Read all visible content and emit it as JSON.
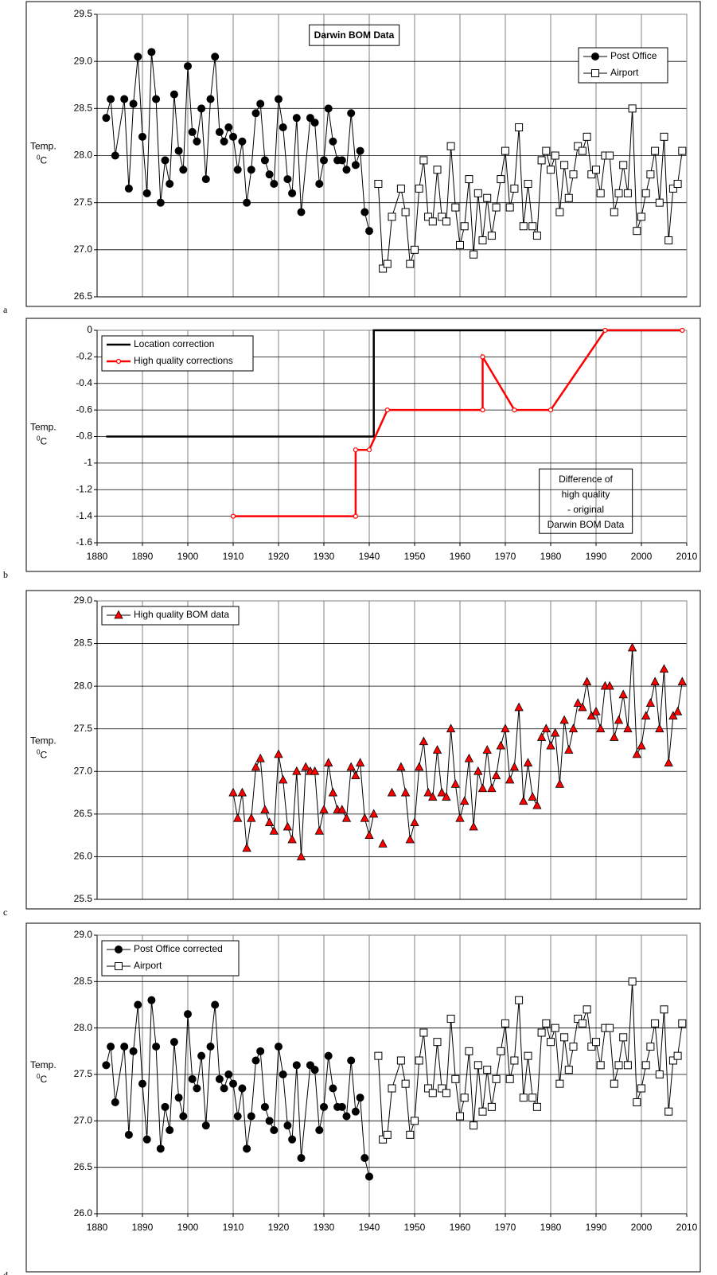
{
  "chart_data": [
    {
      "type": "line",
      "title": "Darwin BOM Data",
      "panel_label": "a",
      "ylabel": "Temp.",
      "yunit_sup": "0",
      "yunit": "C",
      "xlim": [
        1880,
        2010
      ],
      "xticks": [
        1880,
        1890,
        1900,
        1910,
        1920,
        1930,
        1940,
        1950,
        1960,
        1970,
        1980,
        1990,
        2000,
        2010
      ],
      "show_xtick_labels": false,
      "ylim": [
        26.5,
        29.5
      ],
      "yticks": [
        26.5,
        {
          "value": 27,
          "label": "27.0"
        },
        27.5,
        {
          "value": 28,
          "label": "28.0"
        },
        28.5,
        {
          "value": 29,
          "label": "29.0"
        },
        29.5
      ],
      "grid": true,
      "legend": "upper right",
      "series": [
        {
          "name": "Post Office",
          "color": "#000000",
          "marker": "circle",
          "marker_color": "#000000",
          "x": [
            1882,
            1883,
            1884,
            1886,
            1887,
            1888,
            1889,
            1890,
            1891,
            1892,
            1893,
            1894,
            1895,
            1896,
            1897,
            1898,
            1899,
            1900,
            1901,
            1902,
            1903,
            1904,
            1905,
            1906,
            1907,
            1908,
            1909,
            1910,
            1911,
            1912,
            1913,
            1914,
            1915,
            1916,
            1917,
            1918,
            1919,
            1920,
            1921,
            1922,
            1923,
            1924,
            1925,
            1927,
            1928,
            1929,
            1930,
            1931,
            1932,
            1933,
            1934,
            1935,
            1936,
            1937,
            1938,
            1939,
            1940
          ],
          "values": [
            28.4,
            28.6,
            28.0,
            28.6,
            27.65,
            28.55,
            29.05,
            28.2,
            27.6,
            29.1,
            28.6,
            27.5,
            27.95,
            27.7,
            28.65,
            28.05,
            27.85,
            28.95,
            28.25,
            28.15,
            28.5,
            27.75,
            28.6,
            29.05,
            28.25,
            28.15,
            28.3,
            28.2,
            27.85,
            28.15,
            27.5,
            27.85,
            28.45,
            28.55,
            27.95,
            27.8,
            27.7,
            28.6,
            28.3,
            27.75,
            27.6,
            28.4,
            27.4,
            28.4,
            28.35,
            27.7,
            27.95,
            28.5,
            28.15,
            27.95,
            27.95,
            27.85,
            28.45,
            27.9,
            28.05,
            27.4,
            27.2
          ]
        },
        {
          "name": "Airport",
          "color": "#000000",
          "marker": "square",
          "marker_color": "#ffffff",
          "x": [
            1942,
            1943,
            1944,
            1945,
            1947,
            1948,
            1949,
            1950,
            1951,
            1952,
            1953,
            1954,
            1955,
            1956,
            1957,
            1958,
            1959,
            1960,
            1961,
            1962,
            1963,
            1964,
            1965,
            1966,
            1967,
            1968,
            1969,
            1970,
            1971,
            1972,
            1973,
            1974,
            1975,
            1976,
            1977,
            1978,
            1979,
            1980,
            1981,
            1982,
            1983,
            1984,
            1985,
            1986,
            1987,
            1988,
            1989,
            1990,
            1991,
            1992,
            1993,
            1994,
            1995,
            1996,
            1997,
            1998,
            1999,
            2000,
            2001,
            2002,
            2003,
            2004,
            2005,
            2006,
            2007,
            2008,
            2009
          ],
          "values": [
            27.7,
            26.8,
            26.85,
            27.35,
            27.65,
            27.4,
            26.85,
            27.0,
            27.65,
            27.95,
            27.35,
            27.3,
            27.85,
            27.35,
            27.3,
            28.1,
            27.45,
            27.05,
            27.25,
            27.75,
            26.95,
            27.6,
            27.1,
            27.55,
            27.15,
            27.45,
            27.75,
            28.05,
            27.45,
            27.65,
            28.3,
            27.25,
            27.7,
            27.25,
            27.15,
            27.95,
            28.05,
            27.85,
            28.0,
            27.4,
            27.9,
            27.55,
            27.8,
            28.1,
            28.05,
            28.2,
            27.8,
            27.85,
            27.6,
            28.0,
            28.0,
            27.4,
            27.6,
            27.9,
            27.6,
            28.5,
            27.2,
            27.35,
            27.6,
            27.8,
            28.05,
            27.5,
            28.2,
            27.1,
            27.65,
            27.7,
            28.05
          ]
        }
      ]
    },
    {
      "type": "line",
      "panel_label": "b",
      "ylabel": "Temp.",
      "yunit_sup": "0",
      "yunit": "C",
      "annotation": [
        "Difference of",
        "high quality",
        "- original",
        "Darwin BOM Data"
      ],
      "xlim": [
        1880,
        2010
      ],
      "xticks": [
        1880,
        1890,
        1900,
        1910,
        1920,
        1930,
        1940,
        1950,
        1960,
        1970,
        1980,
        1990,
        2000,
        2010
      ],
      "show_xtick_labels": true,
      "ylim": [
        -1.6,
        0
      ],
      "yticks": [
        -1.6,
        -1.4,
        -1.2,
        -1,
        -0.8,
        -0.6,
        -0.4,
        -0.2,
        0
      ],
      "grid": true,
      "legend": "upper left",
      "series": [
        {
          "name": "Location correction",
          "color": "#000000",
          "x": [
            1882,
            1941,
            1941,
            2009
          ],
          "values": [
            -0.8,
            -0.8,
            0,
            0
          ]
        },
        {
          "name": "High quality corrections",
          "color": "#ff0000",
          "marker": "dot",
          "marker_color": "#ffffff",
          "x": [
            1910,
            1937,
            1937,
            1940,
            1944,
            1965,
            1965,
            1972,
            1980,
            1992,
            2009
          ],
          "values": [
            -1.4,
            -1.4,
            -0.9,
            -0.9,
            -0.6,
            -0.6,
            -0.2,
            -0.6,
            -0.6,
            0,
            0
          ]
        }
      ]
    },
    {
      "type": "line",
      "panel_label": "c",
      "ylabel": "Temp.",
      "yunit_sup": "0",
      "yunit": "C",
      "xlim": [
        1880,
        2010
      ],
      "xticks": [
        1880,
        1890,
        1900,
        1910,
        1920,
        1930,
        1940,
        1950,
        1960,
        1970,
        1980,
        1990,
        2000,
        2010
      ],
      "show_xtick_labels": false,
      "ylim": [
        25.5,
        29
      ],
      "yticks": [
        25.5,
        {
          "value": 26,
          "label": "26.0"
        },
        26.5,
        {
          "value": 27,
          "label": "27.0"
        },
        27.5,
        {
          "value": 28,
          "label": "28.0"
        },
        28.5,
        {
          "value": 29,
          "label": "29.0"
        }
      ],
      "grid": true,
      "legend": "upper left",
      "series": [
        {
          "name": "High quality BOM data",
          "color": "#000000",
          "marker": "triangle",
          "marker_color": "#ff0000",
          "x": [
            1910,
            1911,
            1912,
            1913,
            1914,
            1915,
            1916,
            1917,
            1918,
            1919,
            1920,
            1921,
            1922,
            1923,
            1924,
            1925,
            1926,
            1927,
            1928,
            1929,
            1930,
            1931,
            1932,
            1933,
            1934,
            1935,
            1936,
            1937,
            1938,
            1939,
            1940,
            1941,
            1942,
            1943,
            1944,
            1945,
            1946,
            1947,
            1948,
            1949,
            1950,
            1951,
            1952,
            1953,
            1954,
            1955,
            1956,
            1957,
            1958,
            1959,
            1960,
            1961,
            1962,
            1963,
            1964,
            1965,
            1966,
            1967,
            1968,
            1969,
            1970,
            1971,
            1972,
            1973,
            1974,
            1975,
            1976,
            1977,
            1978,
            1979,
            1980,
            1981,
            1982,
            1983,
            1984,
            1985,
            1986,
            1987,
            1988,
            1989,
            1990,
            1991,
            1992,
            1993,
            1994,
            1995,
            1996,
            1997,
            1998,
            1999,
            2000,
            2001,
            2002,
            2003,
            2004,
            2005,
            2006,
            2007,
            2008,
            2009
          ],
          "values": [
            26.75,
            26.45,
            26.75,
            26.1,
            26.45,
            27.05,
            27.15,
            26.55,
            26.4,
            26.3,
            27.2,
            26.9,
            26.35,
            26.2,
            27.0,
            26.0,
            27.05,
            27.0,
            27.0,
            26.3,
            26.55,
            27.1,
            26.75,
            26.55,
            26.55,
            26.45,
            27.05,
            26.95,
            27.1,
            26.45,
            26.25,
            26.5,
            null,
            26.15,
            null,
            26.75,
            null,
            27.05,
            26.75,
            26.2,
            26.4,
            27.05,
            27.35,
            26.75,
            26.7,
            27.25,
            26.75,
            26.7,
            27.5,
            26.85,
            26.45,
            26.65,
            27.15,
            26.35,
            27.0,
            26.8,
            27.25,
            26.8,
            26.95,
            27.3,
            27.5,
            26.9,
            27.05,
            27.75,
            26.65,
            27.1,
            26.7,
            26.6,
            27.4,
            27.5,
            27.3,
            27.45,
            26.85,
            27.6,
            27.25,
            27.5,
            27.8,
            27.75,
            28.05,
            27.65,
            27.7,
            27.5,
            28.0,
            28.0,
            27.4,
            27.6,
            27.9,
            27.5,
            28.45,
            27.2,
            27.3,
            27.65,
            27.8,
            28.05,
            27.5,
            28.2,
            27.1,
            27.65,
            27.7,
            28.05
          ]
        }
      ]
    },
    {
      "type": "line",
      "panel_label": "d",
      "ylabel": "Temp.",
      "yunit_sup": "0",
      "yunit": "C",
      "xlim": [
        1880,
        2010
      ],
      "xticks": [
        1880,
        1890,
        1900,
        1910,
        1920,
        1930,
        1940,
        1950,
        1960,
        1970,
        1980,
        1990,
        2000,
        2010
      ],
      "show_xtick_labels": true,
      "ylim": [
        26,
        29
      ],
      "yticks": [
        {
          "value": 26,
          "label": "26.0"
        },
        26.5,
        {
          "value": 27,
          "label": "27.0"
        },
        27.5,
        {
          "value": 28,
          "label": "28.0"
        },
        28.5,
        {
          "value": 29,
          "label": "29.0"
        }
      ],
      "grid": true,
      "legend": "upper left",
      "series": [
        {
          "name": "Post Office corrected",
          "color": "#000000",
          "marker": "circle",
          "marker_color": "#000000",
          "x": [
            1882,
            1883,
            1884,
            1886,
            1887,
            1888,
            1889,
            1890,
            1891,
            1892,
            1893,
            1894,
            1895,
            1896,
            1897,
            1898,
            1899,
            1900,
            1901,
            1902,
            1903,
            1904,
            1905,
            1906,
            1907,
            1908,
            1909,
            1910,
            1911,
            1912,
            1913,
            1914,
            1915,
            1916,
            1917,
            1918,
            1919,
            1920,
            1921,
            1922,
            1923,
            1924,
            1925,
            1927,
            1928,
            1929,
            1930,
            1931,
            1932,
            1933,
            1934,
            1935,
            1936,
            1937,
            1938,
            1939,
            1940
          ],
          "values": [
            27.6,
            27.8,
            27.2,
            27.8,
            26.85,
            27.75,
            28.25,
            27.4,
            26.8,
            28.3,
            27.8,
            26.7,
            27.15,
            26.9,
            27.85,
            27.25,
            27.05,
            28.15,
            27.45,
            27.35,
            27.7,
            26.95,
            27.8,
            28.25,
            27.45,
            27.35,
            27.5,
            27.4,
            27.05,
            27.35,
            26.7,
            27.05,
            27.65,
            27.75,
            27.15,
            27.0,
            26.9,
            27.8,
            27.5,
            26.95,
            26.8,
            27.6,
            26.6,
            27.6,
            27.55,
            26.9,
            27.15,
            27.7,
            27.35,
            27.15,
            27.15,
            27.05,
            27.65,
            27.1,
            27.25,
            26.6,
            26.4
          ]
        },
        {
          "name": "Airport",
          "color": "#000000",
          "marker": "square",
          "marker_color": "#ffffff",
          "x": [
            1942,
            1943,
            1944,
            1945,
            1947,
            1948,
            1949,
            1950,
            1951,
            1952,
            1953,
            1954,
            1955,
            1956,
            1957,
            1958,
            1959,
            1960,
            1961,
            1962,
            1963,
            1964,
            1965,
            1966,
            1967,
            1968,
            1969,
            1970,
            1971,
            1972,
            1973,
            1974,
            1975,
            1976,
            1977,
            1978,
            1979,
            1980,
            1981,
            1982,
            1983,
            1984,
            1985,
            1986,
            1987,
            1988,
            1989,
            1990,
            1991,
            1992,
            1993,
            1994,
            1995,
            1996,
            1997,
            1998,
            1999,
            2000,
            2001,
            2002,
            2003,
            2004,
            2005,
            2006,
            2007,
            2008,
            2009
          ],
          "values": [
            27.7,
            26.8,
            26.85,
            27.35,
            27.65,
            27.4,
            26.85,
            27.0,
            27.65,
            27.95,
            27.35,
            27.3,
            27.85,
            27.35,
            27.3,
            28.1,
            27.45,
            27.05,
            27.25,
            27.75,
            26.95,
            27.6,
            27.1,
            27.55,
            27.15,
            27.45,
            27.75,
            28.05,
            27.45,
            27.65,
            28.3,
            27.25,
            27.7,
            27.25,
            27.15,
            27.95,
            28.05,
            27.85,
            28.0,
            27.4,
            27.9,
            27.55,
            27.8,
            28.1,
            28.05,
            28.2,
            27.8,
            27.85,
            27.6,
            28.0,
            28.0,
            27.4,
            27.6,
            27.9,
            27.6,
            28.5,
            27.2,
            27.35,
            27.6,
            27.8,
            28.05,
            27.5,
            28.2,
            27.1,
            27.65,
            27.7,
            28.05
          ]
        }
      ]
    }
  ]
}
